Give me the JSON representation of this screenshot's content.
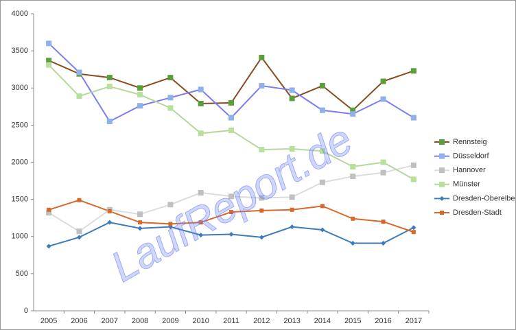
{
  "chart_data": {
    "type": "line",
    "categories": [
      "2005",
      "2006",
      "2007",
      "2008",
      "2009",
      "2010",
      "2011",
      "2012",
      "2013",
      "2014",
      "2015",
      "2016",
      "2017"
    ],
    "ylim": [
      0,
      4000
    ],
    "yticks": [
      0,
      500,
      1000,
      1500,
      2000,
      2500,
      3000,
      3500,
      4000
    ],
    "grid": false,
    "legend": "right",
    "watermark": "LaufReport.de",
    "series": [
      {
        "name": "Rennsteig",
        "color": "#8a4b1c",
        "marker_color": "#5c9e3c",
        "marker": "square",
        "values": [
          3370,
          3190,
          3140,
          3000,
          3140,
          2790,
          2800,
          3410,
          2860,
          3030,
          2700,
          3090,
          3230
        ]
      },
      {
        "name": "Düsseldorf",
        "color": "#7b7cf0",
        "marker_color": "#8fb0e8",
        "marker": "square",
        "values": [
          3600,
          3210,
          2550,
          2760,
          2870,
          2980,
          2600,
          3030,
          2970,
          2700,
          2650,
          2850,
          2600
        ]
      },
      {
        "name": "Hannover",
        "color": "#dcdcdc",
        "marker_color": "#c0c0c0",
        "marker": "square",
        "values": [
          1320,
          1070,
          1360,
          1300,
          1430,
          1590,
          1540,
          1520,
          1530,
          1730,
          1810,
          1860,
          1960
        ]
      },
      {
        "name": "Münster",
        "color": "#b5d89a",
        "marker_color": "#b8e09c",
        "marker": "square",
        "values": [
          3310,
          2890,
          3020,
          2910,
          2730,
          2390,
          2430,
          2170,
          2180,
          2150,
          1940,
          2000,
          1770
        ]
      },
      {
        "name": "Dresden-Oberelbe",
        "color": "#3b7bb8",
        "marker_color": "#3b7bb8",
        "marker": "diamond",
        "values": [
          870,
          990,
          1190,
          1110,
          1130,
          1020,
          1030,
          990,
          1130,
          1090,
          910,
          910,
          1120
        ]
      },
      {
        "name": "Dresden-Stadt",
        "color": "#d8692a",
        "marker_color": "#d8692a",
        "marker": "small-square",
        "values": [
          1360,
          1490,
          1340,
          1190,
          1170,
          1190,
          1330,
          1350,
          1360,
          1410,
          1240,
          1200,
          1060
        ]
      }
    ]
  }
}
